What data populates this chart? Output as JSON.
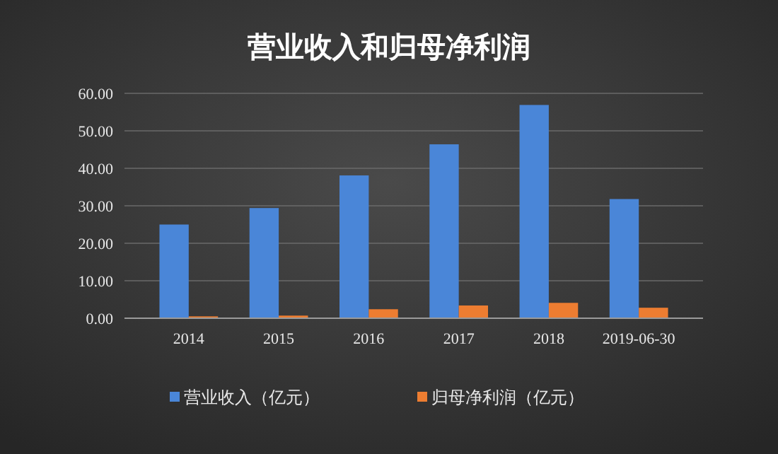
{
  "chart_data": {
    "type": "bar",
    "title": "营业收入和归母净利润",
    "categories": [
      "2014",
      "2015",
      "2016",
      "2017",
      "2018",
      "2019-06-30"
    ],
    "series": [
      {
        "name": "营业收入（亿元）",
        "color": "#4a86d8",
        "values": [
          25.0,
          29.4,
          38.1,
          46.4,
          56.9,
          31.8
        ]
      },
      {
        "name": "归母净利润（亿元）",
        "color": "#ed7d31",
        "values": [
          0.5,
          0.7,
          2.4,
          3.4,
          4.1,
          2.8
        ]
      }
    ],
    "ylim": [
      0,
      60
    ],
    "yticks": [
      {
        "value": 0,
        "label": "0.00"
      },
      {
        "value": 10,
        "label": "10.00"
      },
      {
        "value": 20,
        "label": "20.00"
      },
      {
        "value": 30,
        "label": "30.00"
      },
      {
        "value": 40,
        "label": "40.00"
      },
      {
        "value": 50,
        "label": "50.00"
      },
      {
        "value": 60,
        "label": "60.00"
      }
    ],
    "grid": "y",
    "legend": "bottom"
  }
}
